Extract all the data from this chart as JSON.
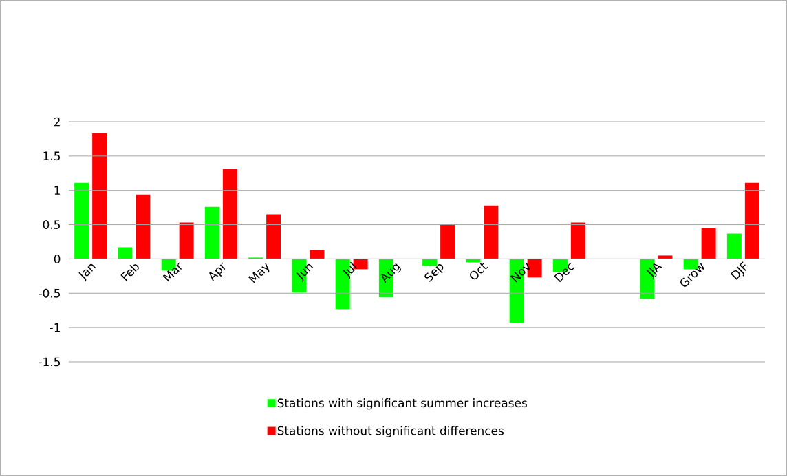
{
  "chart_data": {
    "type": "bar",
    "categories": [
      "Jan",
      "Feb",
      "Mar",
      "Apr",
      "May",
      "Jun",
      "Jul",
      "Aug",
      "Sep",
      "Oct",
      "Nov",
      "Dec",
      null,
      "JJA",
      "Grow",
      "DJF"
    ],
    "series": [
      {
        "name": "Stations with significant summer increases",
        "color": "#00ff00",
        "values": [
          1.11,
          0.17,
          -0.17,
          0.76,
          0.02,
          -0.49,
          -0.73,
          -0.56,
          -0.1,
          -0.05,
          -0.93,
          -0.19,
          null,
          -0.58,
          -0.15,
          0.37
        ]
      },
      {
        "name": "Stations without significant differences",
        "color": "#ff0000",
        "values": [
          1.83,
          0.94,
          0.53,
          1.31,
          0.65,
          0.13,
          -0.15,
          null,
          0.51,
          0.78,
          -0.27,
          0.53,
          null,
          0.05,
          0.45,
          1.11
        ]
      }
    ],
    "ylim": [
      -1.5,
      2
    ],
    "yticks": [
      -1.5,
      -1,
      -0.5,
      0,
      0.5,
      1,
      1.5,
      2
    ],
    "grid": "y",
    "legend": "bottom"
  }
}
